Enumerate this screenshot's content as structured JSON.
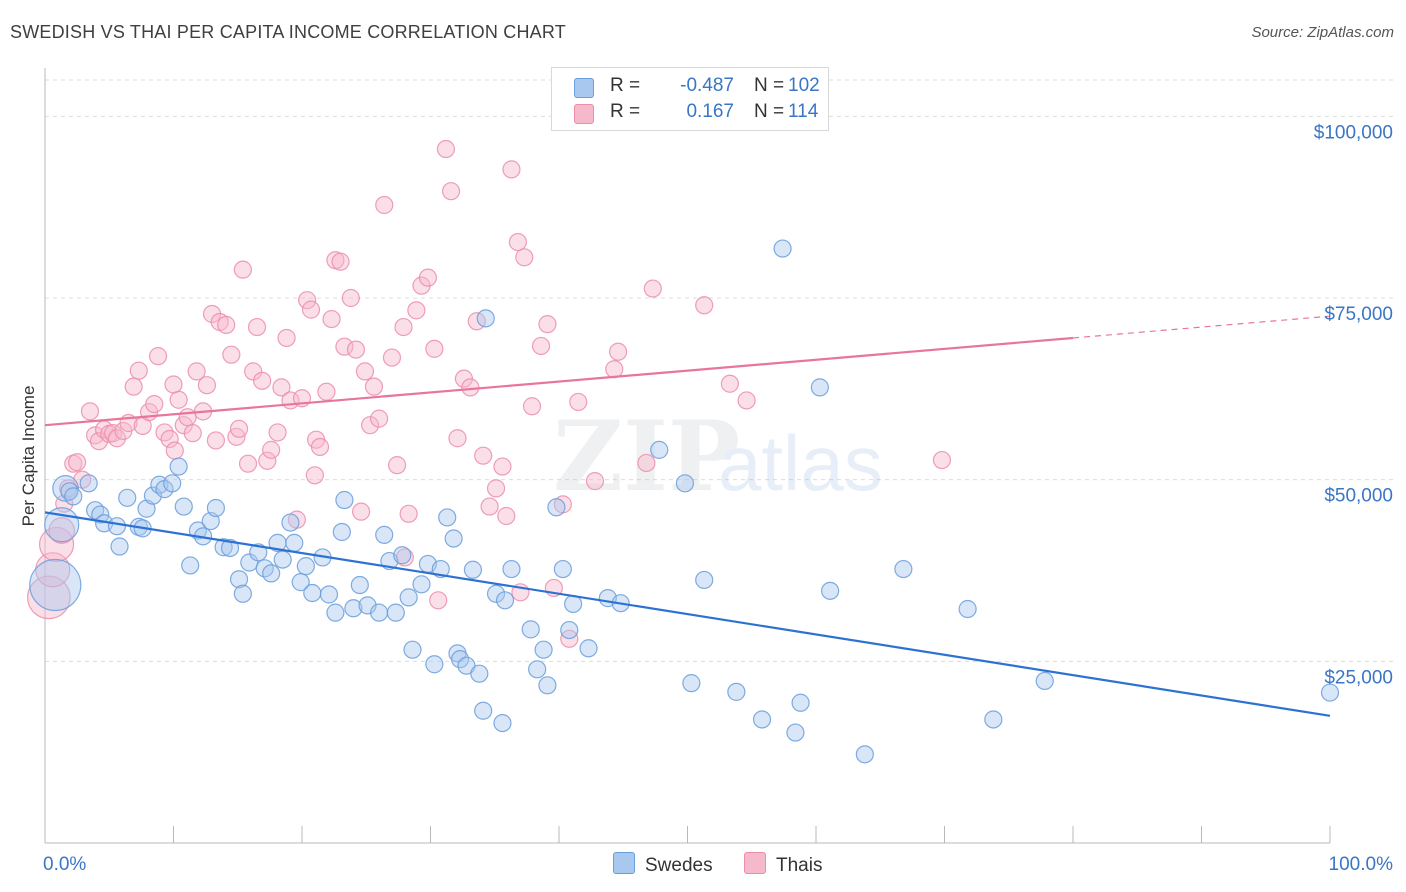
{
  "header": {
    "title": "SWEDISH VS THAI PER CAPITA INCOME CORRELATION CHART",
    "source": "Source: ZipAtlas.com"
  },
  "watermark": {
    "text": "ZIPatlas"
  },
  "legend": {
    "rows": [
      {
        "r_label": "R =",
        "r_value": "-0.487",
        "n_label": "N =",
        "n_value": "102",
        "color": "#a9c8ef"
      },
      {
        "r_label": "R =",
        "r_value": "0.167",
        "n_label": "N =",
        "n_value": "114",
        "color": "#f6b8cb"
      }
    ]
  },
  "bottom_legend": {
    "series1": "Swedes",
    "series2": "Thais"
  },
  "colors": {
    "blue_fill": "#a9c8ef",
    "blue_stroke": "#6a9edb",
    "blue_line": "#2d72d2",
    "pink_fill": "#f6b8cb",
    "pink_stroke": "#ec8daa",
    "pink_line": "#e8759a",
    "axis_label": "#3a76c4",
    "grid": "#dcdcdc"
  },
  "chart_data": {
    "type": "scatter",
    "title": "SWEDISH VS THAI PER CAPITA INCOME CORRELATION CHART",
    "xlabel": "",
    "ylabel": "Per Capita Income",
    "xlim": [
      0,
      100
    ],
    "ylim": [
      0,
      105000
    ],
    "x_tick_labels": [
      "0.0%",
      "100.0%"
    ],
    "y_ticks": [
      25000,
      50000,
      75000,
      100000
    ],
    "y_tick_labels": [
      "$25,000",
      "$50,000",
      "$75,000",
      "$100,000"
    ],
    "grid": true,
    "legend_position": "top-center",
    "series": [
      {
        "name": "Swedes",
        "r": -0.487,
        "n": 102,
        "trend": {
          "x": [
            0,
            100
          ],
          "y": [
            45500,
            17500
          ],
          "dashed_from": null
        },
        "points": [
          [
            0.8,
            35500,
            3
          ],
          [
            1.3,
            43800,
            2
          ],
          [
            1.6,
            48800,
            1.5
          ],
          [
            1.9,
            48400,
            1
          ],
          [
            2.2,
            47700,
            1
          ],
          [
            3.4,
            49500,
            1
          ],
          [
            3.9,
            45800,
            1
          ],
          [
            4.3,
            45200,
            1
          ],
          [
            4.6,
            44000,
            1
          ],
          [
            5.6,
            43600,
            1
          ],
          [
            5.8,
            40800,
            1
          ],
          [
            6.4,
            47500,
            1
          ],
          [
            7.3,
            43500,
            1
          ],
          [
            7.6,
            43300,
            1
          ],
          [
            7.9,
            46000,
            1
          ],
          [
            8.4,
            47800,
            1
          ],
          [
            8.9,
            49300,
            1
          ],
          [
            9.3,
            48700,
            1
          ],
          [
            9.9,
            49500,
            1
          ],
          [
            10.4,
            51800,
            1
          ],
          [
            10.8,
            46300,
            1
          ],
          [
            11.3,
            38200,
            1
          ],
          [
            11.9,
            43000,
            1
          ],
          [
            12.3,
            42200,
            1
          ],
          [
            12.9,
            44300,
            1
          ],
          [
            13.3,
            46100,
            1
          ],
          [
            13.9,
            40700,
            1
          ],
          [
            14.4,
            40600,
            1
          ],
          [
            15.1,
            36300,
            1
          ],
          [
            15.4,
            34300,
            1
          ],
          [
            15.9,
            38600,
            1
          ],
          [
            16.6,
            40000,
            1
          ],
          [
            17.1,
            37800,
            1
          ],
          [
            17.6,
            37100,
            1
          ],
          [
            18.1,
            41300,
            1
          ],
          [
            18.5,
            39000,
            1
          ],
          [
            19.1,
            44100,
            1
          ],
          [
            19.4,
            41300,
            1
          ],
          [
            19.9,
            35900,
            1
          ],
          [
            20.3,
            38100,
            1
          ],
          [
            20.8,
            34400,
            1
          ],
          [
            21.6,
            39300,
            1
          ],
          [
            22.1,
            34200,
            1
          ],
          [
            22.6,
            31700,
            1
          ],
          [
            23.1,
            42800,
            1
          ],
          [
            23.3,
            47200,
            1
          ],
          [
            24.0,
            32300,
            1
          ],
          [
            24.5,
            35500,
            1
          ],
          [
            25.1,
            32700,
            1
          ],
          [
            26.0,
            31700,
            1
          ],
          [
            26.4,
            42400,
            1
          ],
          [
            26.8,
            38800,
            1
          ],
          [
            27.3,
            31700,
            1
          ],
          [
            27.8,
            39600,
            1
          ],
          [
            28.3,
            33800,
            1
          ],
          [
            28.6,
            26600,
            1
          ],
          [
            29.3,
            35600,
            1
          ],
          [
            29.8,
            38400,
            1
          ],
          [
            30.3,
            24600,
            1
          ],
          [
            30.8,
            37700,
            1
          ],
          [
            31.3,
            44800,
            1
          ],
          [
            31.8,
            41900,
            1
          ],
          [
            32.1,
            26100,
            1
          ],
          [
            32.3,
            25300,
            1
          ],
          [
            32.8,
            24400,
            1
          ],
          [
            33.3,
            37600,
            1
          ],
          [
            33.8,
            23300,
            1
          ],
          [
            34.1,
            18200,
            1
          ],
          [
            34.3,
            72200,
            1
          ],
          [
            35.1,
            34300,
            1
          ],
          [
            35.6,
            16500,
            1
          ],
          [
            35.8,
            33400,
            1
          ],
          [
            36.3,
            37700,
            1
          ],
          [
            37.8,
            29400,
            1
          ],
          [
            38.3,
            23900,
            1
          ],
          [
            38.8,
            26600,
            1
          ],
          [
            39.1,
            21700,
            1
          ],
          [
            39.8,
            46200,
            1
          ],
          [
            40.3,
            37700,
            1
          ],
          [
            40.8,
            29300,
            1
          ],
          [
            41.1,
            32900,
            1
          ],
          [
            42.3,
            26800,
            1
          ],
          [
            43.8,
            33700,
            1
          ],
          [
            44.8,
            33000,
            1
          ],
          [
            47.8,
            54100,
            1
          ],
          [
            49.8,
            49500,
            1
          ],
          [
            50.3,
            22000,
            1
          ],
          [
            51.3,
            36200,
            1
          ],
          [
            53.8,
            20800,
            1
          ],
          [
            55.8,
            17000,
            1
          ],
          [
            57.4,
            81800,
            1
          ],
          [
            58.4,
            15200,
            1
          ],
          [
            58.8,
            19300,
            1
          ],
          [
            60.3,
            62700,
            1
          ],
          [
            61.1,
            34700,
            1
          ],
          [
            63.8,
            12200,
            1
          ],
          [
            66.8,
            37700,
            1
          ],
          [
            71.8,
            32200,
            1
          ],
          [
            73.8,
            17000,
            1
          ],
          [
            77.8,
            22300,
            1
          ],
          [
            100.0,
            20700,
            1
          ]
        ]
      },
      {
        "name": "Thais",
        "r": 0.167,
        "n": 114,
        "trend": {
          "x": [
            0,
            100
          ],
          "y": [
            57500,
            72500
          ],
          "dashed_from": 80
        },
        "points": [
          [
            0.3,
            33800,
            2.5
          ],
          [
            0.6,
            37600,
            2
          ],
          [
            0.9,
            41100,
            2
          ],
          [
            1.3,
            43000,
            1.5
          ],
          [
            1.5,
            46700,
            1
          ],
          [
            1.8,
            48800,
            1
          ],
          [
            2.2,
            52200,
            1
          ],
          [
            2.5,
            52400,
            1
          ],
          [
            2.9,
            50000,
            1
          ],
          [
            3.5,
            59400,
            1
          ],
          [
            3.9,
            56100,
            1
          ],
          [
            4.2,
            55300,
            1
          ],
          [
            4.6,
            56900,
            1
          ],
          [
            5.0,
            56300,
            1
          ],
          [
            5.3,
            56400,
            1
          ],
          [
            5.6,
            55700,
            1
          ],
          [
            6.1,
            56700,
            1
          ],
          [
            6.5,
            57800,
            1
          ],
          [
            6.9,
            62800,
            1
          ],
          [
            7.3,
            65000,
            1
          ],
          [
            7.6,
            57400,
            1
          ],
          [
            8.1,
            59300,
            1
          ],
          [
            8.5,
            60400,
            1
          ],
          [
            8.8,
            67000,
            1
          ],
          [
            9.3,
            56500,
            1
          ],
          [
            9.7,
            55600,
            1
          ],
          [
            10.1,
            54000,
            1
          ],
          [
            10.4,
            61000,
            1
          ],
          [
            10.8,
            57500,
            1
          ],
          [
            11.1,
            58600,
            1
          ],
          [
            11.5,
            56400,
            1
          ],
          [
            11.8,
            64900,
            1
          ],
          [
            12.3,
            59400,
            1
          ],
          [
            12.6,
            63000,
            1
          ],
          [
            13.0,
            72800,
            1
          ],
          [
            13.3,
            55400,
            1
          ],
          [
            13.6,
            71700,
            1
          ],
          [
            14.1,
            71300,
            1
          ],
          [
            14.5,
            67200,
            1
          ],
          [
            14.9,
            55900,
            1
          ],
          [
            15.1,
            57000,
            1
          ],
          [
            15.4,
            78900,
            1
          ],
          [
            15.8,
            52200,
            1
          ],
          [
            16.2,
            64900,
            1
          ],
          [
            16.5,
            71000,
            1
          ],
          [
            16.9,
            63600,
            1
          ],
          [
            17.3,
            52600,
            1
          ],
          [
            17.6,
            54100,
            1
          ],
          [
            18.1,
            56500,
            1
          ],
          [
            18.4,
            62700,
            1
          ],
          [
            18.8,
            69500,
            1
          ],
          [
            19.1,
            60900,
            1
          ],
          [
            19.6,
            44500,
            1
          ],
          [
            20.0,
            61200,
            1
          ],
          [
            20.4,
            74700,
            1
          ],
          [
            20.7,
            73400,
            1
          ],
          [
            21.1,
            55500,
            1
          ],
          [
            21.4,
            54500,
            1
          ],
          [
            21.9,
            62100,
            1
          ],
          [
            22.3,
            72100,
            1
          ],
          [
            22.6,
            80200,
            1
          ],
          [
            23.0,
            80000,
            1
          ],
          [
            23.3,
            68300,
            1
          ],
          [
            23.8,
            75000,
            1
          ],
          [
            24.2,
            67900,
            1
          ],
          [
            24.6,
            45600,
            1
          ],
          [
            24.9,
            64900,
            1
          ],
          [
            25.3,
            57500,
            1
          ],
          [
            25.6,
            62800,
            1
          ],
          [
            26.0,
            58400,
            1
          ],
          [
            26.4,
            87800,
            1
          ],
          [
            27.0,
            66800,
            1
          ],
          [
            27.4,
            52000,
            1
          ],
          [
            27.9,
            71000,
            1
          ],
          [
            28.3,
            45300,
            1
          ],
          [
            28.9,
            73300,
            1
          ],
          [
            29.3,
            76700,
            1
          ],
          [
            29.8,
            77800,
            1
          ],
          [
            30.3,
            68000,
            1
          ],
          [
            30.6,
            33400,
            1
          ],
          [
            31.2,
            95500,
            1
          ],
          [
            31.6,
            89700,
            1
          ],
          [
            32.1,
            55700,
            1
          ],
          [
            32.6,
            63900,
            1
          ],
          [
            33.1,
            62700,
            1
          ],
          [
            33.6,
            71800,
            1
          ],
          [
            34.1,
            53300,
            1
          ],
          [
            34.6,
            46300,
            1
          ],
          [
            35.1,
            48800,
            1
          ],
          [
            35.6,
            51800,
            1
          ],
          [
            35.9,
            45000,
            1
          ],
          [
            36.3,
            92700,
            1
          ],
          [
            36.8,
            82700,
            1
          ],
          [
            37.3,
            80600,
            1
          ],
          [
            37.9,
            60100,
            1
          ],
          [
            38.6,
            68400,
            1
          ],
          [
            39.1,
            71400,
            1
          ],
          [
            39.6,
            35100,
            1
          ],
          [
            40.3,
            46600,
            1
          ],
          [
            40.8,
            28100,
            1
          ],
          [
            41.5,
            60700,
            1
          ],
          [
            42.8,
            49800,
            1
          ],
          [
            44.3,
            65200,
            1
          ],
          [
            44.6,
            67600,
            1
          ],
          [
            46.8,
            52300,
            1
          ],
          [
            47.3,
            76300,
            1
          ],
          [
            51.3,
            74000,
            1
          ],
          [
            53.3,
            63200,
            1
          ],
          [
            54.6,
            60900,
            1
          ],
          [
            69.8,
            52700,
            1
          ],
          [
            37.0,
            34500,
            1
          ],
          [
            28.0,
            39300,
            1
          ],
          [
            21.0,
            50600,
            1
          ],
          [
            10.0,
            63100,
            1
          ]
        ]
      }
    ]
  }
}
